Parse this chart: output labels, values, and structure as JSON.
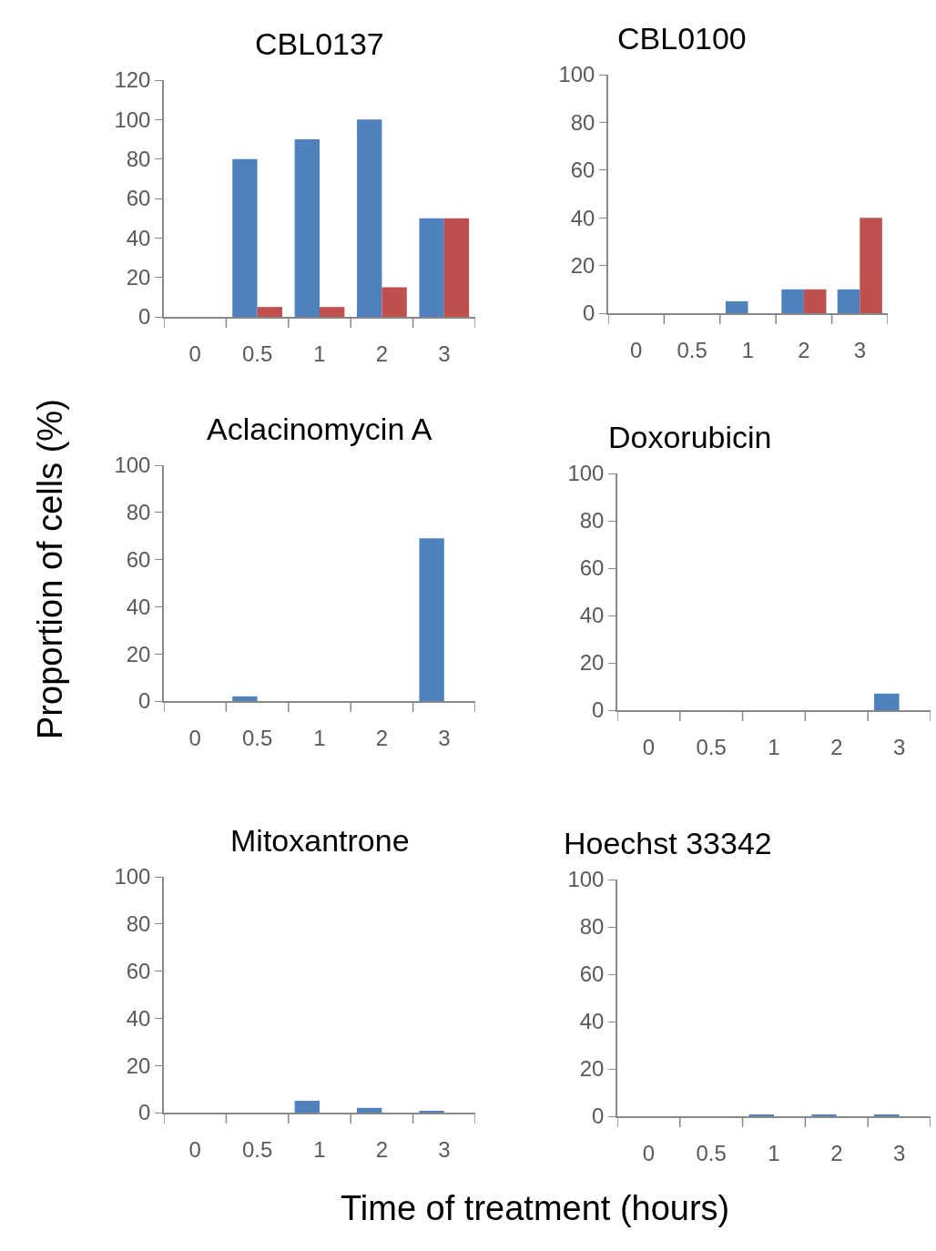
{
  "chart_data": [
    {
      "type": "bar",
      "title": "CBL0137",
      "categories": [
        "0",
        "0.5",
        "1",
        "2",
        "3"
      ],
      "series": [
        {
          "color": "#4f81bd",
          "values": [
            0,
            80,
            90,
            100,
            50
          ]
        },
        {
          "color": "#c0504d",
          "values": [
            0,
            5,
            5,
            15,
            50
          ]
        }
      ],
      "ylim": [
        0,
        120
      ],
      "yticks": [
        0,
        20,
        40,
        60,
        80,
        100,
        120
      ]
    },
    {
      "type": "bar",
      "title": "CBL0100",
      "categories": [
        "0",
        "0.5",
        "1",
        "2",
        "3"
      ],
      "series": [
        {
          "color": "#4f81bd",
          "values": [
            0,
            0,
            5,
            10,
            10
          ]
        },
        {
          "color": "#c0504d",
          "values": [
            0,
            0,
            0,
            10,
            40
          ]
        }
      ],
      "ylim": [
        0,
        100
      ],
      "yticks": [
        0,
        20,
        40,
        60,
        80,
        100
      ]
    },
    {
      "type": "bar",
      "title": "Aclacinomycin A",
      "ylabel": "Proportion of cells (%)",
      "categories": [
        "0",
        "0.5",
        "1",
        "2",
        "3"
      ],
      "series": [
        {
          "color": "#4f81bd",
          "values": [
            0,
            2,
            0,
            0,
            69
          ]
        }
      ],
      "ylim": [
        0,
        100
      ],
      "yticks": [
        0,
        20,
        40,
        60,
        80,
        100
      ]
    },
    {
      "type": "bar",
      "title": "Doxorubicin",
      "categories": [
        "0",
        "0.5",
        "1",
        "2",
        "3"
      ],
      "series": [
        {
          "color": "#4f81bd",
          "values": [
            0,
            0,
            0,
            0,
            7
          ]
        }
      ],
      "ylim": [
        0,
        100
      ],
      "yticks": [
        0,
        20,
        40,
        60,
        80,
        100
      ]
    },
    {
      "type": "bar",
      "title": "Mitoxantrone",
      "xlabel": "Time of treatment (hours)",
      "categories": [
        "0",
        "0.5",
        "1",
        "2",
        "3"
      ],
      "series": [
        {
          "color": "#4f81bd",
          "values": [
            0,
            0,
            5,
            2,
            0.5
          ]
        }
      ],
      "ylim": [
        0,
        100
      ],
      "yticks": [
        0,
        20,
        40,
        60,
        80,
        100
      ]
    },
    {
      "type": "bar",
      "title": "Hoechst 33342",
      "categories": [
        "0",
        "0.5",
        "1",
        "2",
        "3"
      ],
      "series": [
        {
          "color": "#4f81bd",
          "values": [
            0,
            0,
            0.5,
            0.5,
            0.5
          ]
        }
      ],
      "ylim": [
        0,
        100
      ],
      "yticks": [
        0,
        20,
        40,
        60,
        80,
        100
      ]
    }
  ]
}
